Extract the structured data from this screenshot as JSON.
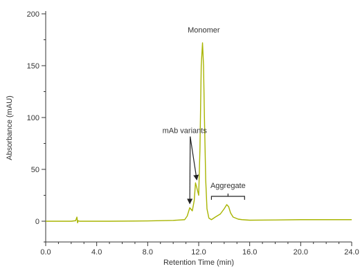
{
  "chart_data": {
    "type": "line",
    "title": "",
    "xlabel": "Retention Time (min)",
    "ylabel": "Absorbance (mAU)",
    "xlim": [
      0,
      24
    ],
    "ylim": [
      -20,
      200
    ],
    "x_ticks": [
      0,
      4,
      8,
      12,
      16,
      20,
      24
    ],
    "x_tick_labels": [
      "0.0",
      "4.0",
      "8.0",
      "12.0",
      "16.0",
      "20.0",
      "24.0"
    ],
    "y_ticks": [
      0,
      50,
      100,
      150,
      200
    ],
    "y_tick_labels": [
      "0",
      "50",
      "100",
      "150",
      "200"
    ],
    "grid": false,
    "series": [
      {
        "color": "#a8b400",
        "x": [
          0.0,
          2.0,
          2.35,
          2.45,
          2.5,
          2.55,
          2.65,
          2.8,
          5.0,
          8.0,
          10.0,
          10.9,
          11.1,
          11.3,
          11.5,
          11.65,
          11.75,
          11.9,
          12.0,
          12.1,
          12.2,
          12.3,
          12.38,
          12.45,
          12.55,
          12.65,
          12.8,
          13.0,
          13.3,
          13.7,
          14.0,
          14.2,
          14.35,
          14.5,
          14.7,
          14.9,
          15.1,
          15.4,
          16.0,
          18.0,
          20.0,
          22.0,
          24.0
        ],
        "y": [
          0.0,
          0.0,
          0.5,
          4.0,
          -1.5,
          0.5,
          0.0,
          0.0,
          0.0,
          0.3,
          0.8,
          1.5,
          5.0,
          13.0,
          10.0,
          20.0,
          37.0,
          30.0,
          25.0,
          70.0,
          150.0,
          172.0,
          150.0,
          100.0,
          40.0,
          12.0,
          3.0,
          1.5,
          4.0,
          7.0,
          12.0,
          16.0,
          14.0,
          8.0,
          4.0,
          3.0,
          2.0,
          1.5,
          1.0,
          1.2,
          1.5,
          1.5,
          1.5
        ]
      }
    ],
    "annotations": [
      {
        "text": "Monomer",
        "x": 12.4,
        "y": 182
      },
      {
        "text": "mAb variants",
        "x": 10.9,
        "y": 85,
        "arrows_to": [
          [
            11.3,
            17
          ],
          [
            11.85,
            40
          ]
        ]
      },
      {
        "text": "Aggregate",
        "x": 14.3,
        "y": 32,
        "bracket": [
          13.0,
          15.6
        ]
      }
    ]
  }
}
